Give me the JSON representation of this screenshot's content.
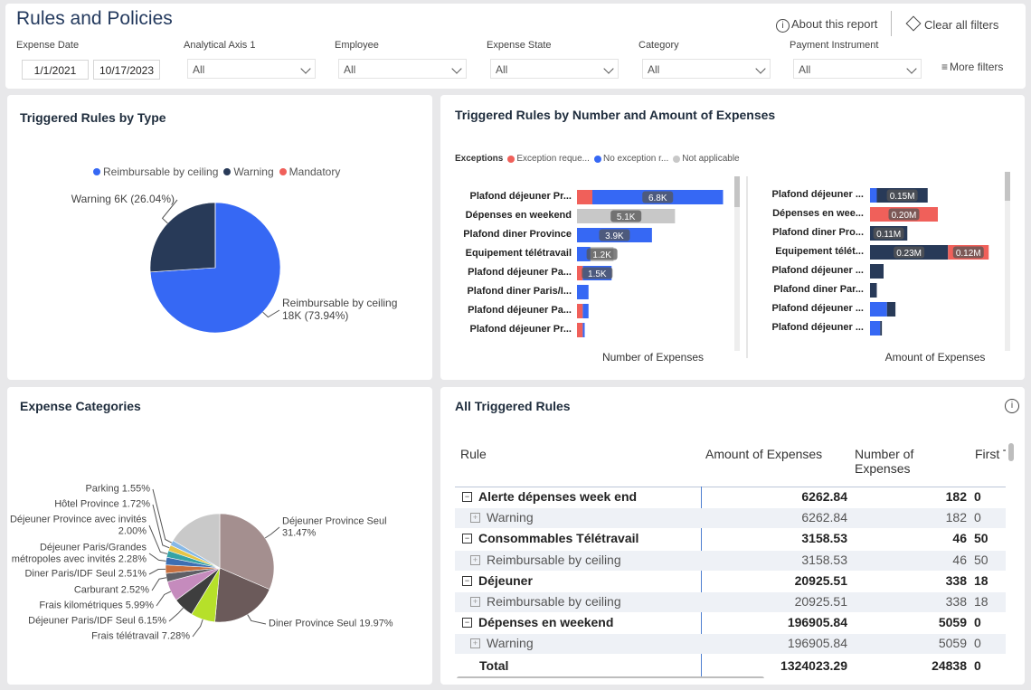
{
  "header": {
    "title": "Rules and Policies",
    "about": "About this report",
    "clear_filters": "Clear all filters",
    "more_filters": "More filters"
  },
  "filters": [
    {
      "label": "Expense Date",
      "values": [
        "1/1/2021",
        "10/17/2023"
      ]
    },
    {
      "label": "Analytical Axis 1",
      "values": [
        "All"
      ]
    },
    {
      "label": "Employee",
      "values": [
        "All"
      ]
    },
    {
      "label": "Expense State",
      "values": [
        "All"
      ]
    },
    {
      "label": "Category",
      "values": [
        "All"
      ]
    },
    {
      "label": "Payment Instrument",
      "values": [
        "All"
      ]
    }
  ],
  "chart_data": [
    {
      "type": "pie",
      "title": "Triggered Rules by Type",
      "categories": [
        "Reimbursable by ceiling",
        "Warning",
        "Mandatory"
      ],
      "values": [
        73.94,
        26.04,
        0.02
      ],
      "value_labels": [
        "Reimbursable by ceiling 18K (73.94%)",
        "Warning 6K (26.04%)",
        null
      ],
      "colors": [
        "#3668f4",
        "#283a58",
        "#f0605a"
      ],
      "legend": "top"
    },
    {
      "type": "bar",
      "orientation": "horizontal",
      "stacked": true,
      "title": "Triggered Rules by Number and Amount of Expenses",
      "legend_title": "Exceptions",
      "x_label": "Number of Expenses",
      "categories": [
        "Plafond déjeuner Pr...",
        "Dépenses en weekend",
        "Plafond diner Province",
        "Equipement télétravail",
        "Plafond déjeuner Pa...",
        "Plafond diner Paris/I...",
        "Plafond déjeuner Pa...",
        "Plafond déjeuner Pr..."
      ],
      "xlim": [
        0,
        8000
      ],
      "series": [
        {
          "name": "Exception reque...",
          "color": "#f0605a",
          "values": [
            800,
            0,
            0,
            0,
            300,
            0,
            300,
            300
          ]
        },
        {
          "name": "No exception r...",
          "color": "#3668f4",
          "values": [
            6800,
            0,
            3900,
            700,
            1500,
            600,
            300,
            100
          ],
          "value_labels": [
            "6.8K",
            null,
            "3.9K",
            null,
            "1.5K",
            null,
            null,
            null
          ]
        },
        {
          "name": "Not applicable",
          "color": "#c8c8c8",
          "values": [
            0,
            5100,
            0,
            1200,
            0,
            0,
            0,
            0
          ],
          "value_labels": [
            null,
            "5.1K",
            null,
            "1.2K",
            null,
            null,
            null,
            null
          ]
        }
      ]
    },
    {
      "type": "bar",
      "orientation": "horizontal",
      "stacked": true,
      "x_label": "Amount of Expenses",
      "categories": [
        "Plafond déjeuner ...",
        "Dépenses en wee...",
        "Plafond diner Pro...",
        "Equipement télét...",
        "Plafond déjeuner ...",
        "Plafond diner Par...",
        "Plafond déjeuner ...",
        "Plafond déjeuner ..."
      ],
      "xlim": [
        0,
        400000
      ],
      "series": [
        {
          "color": "#3668f4",
          "values": [
            20000,
            0,
            0,
            0,
            0,
            0,
            50000,
            30000
          ]
        },
        {
          "color": "#283a58",
          "values": [
            150000,
            0,
            110000,
            230000,
            40000,
            20000,
            25000,
            5000
          ],
          "value_labels": [
            "0.15M",
            null,
            "0.11M",
            "0.23M",
            null,
            null,
            null,
            null
          ]
        },
        {
          "color": "#f0605a",
          "values": [
            0,
            200000,
            0,
            120000,
            0,
            0,
            0,
            0
          ],
          "value_labels": [
            null,
            "0.20M",
            null,
            "0.12M",
            null,
            null,
            null,
            null
          ]
        }
      ]
    },
    {
      "type": "pie",
      "title": "Expense Categories",
      "categories": [
        "Déjeuner Province Seul",
        "Diner Province Seul",
        "Frais télétravail",
        "Déjeuner Paris/IDF Seul",
        "Frais kilométriques",
        "Carburant",
        "Diner Paris/IDF Seul",
        "Déjeuner Paris/Grandes métropoles avec invités",
        "Déjeuner Province avec invités",
        "Hôtel Province",
        "Parking",
        null
      ],
      "values": [
        31.47,
        19.97,
        7.28,
        6.15,
        5.99,
        2.52,
        2.51,
        2.28,
        2.0,
        1.72,
        1.55,
        16.56
      ],
      "value_labels": [
        "31.47%",
        "19.97%",
        "7.28%",
        "6.15%",
        "5.99%",
        "2.52%",
        "2.51%",
        "2.28%",
        "2.00%",
        "1.72%",
        "1.55%",
        null
      ],
      "colors": [
        "#a48f8f",
        "#6b5a5a",
        "#b6e02a",
        "#3e3e3e",
        "#c58bbd",
        "#5f5f66",
        "#c9703f",
        "#3e6fb2",
        "#35a3a6",
        "#e6c547",
        "#86b8e6",
        "#c9c9c9"
      ]
    }
  ],
  "table": {
    "title": "All Triggered Rules",
    "columns": [
      "Rule",
      "Amount of Expenses",
      "Number of Expenses",
      "First T"
    ],
    "groups": [
      {
        "cells": [
          "Alerte dépenses week end",
          "6262.84",
          "182",
          "0"
        ],
        "children": [
          {
            "cells": [
              "Warning",
              "6262.84",
              "182",
              "0"
            ]
          }
        ]
      },
      {
        "cells": [
          "Consommables Télétravail",
          "3158.53",
          "46",
          "50"
        ],
        "children": [
          {
            "cells": [
              "Reimbursable by ceiling",
              "3158.53",
              "46",
              "50"
            ]
          }
        ]
      },
      {
        "cells": [
          "Déjeuner",
          "20925.51",
          "338",
          "18"
        ],
        "children": [
          {
            "cells": [
              "Reimbursable by ceiling",
              "20925.51",
              "338",
              "18"
            ]
          }
        ]
      },
      {
        "cells": [
          "Dépenses en weekend",
          "196905.84",
          "5059",
          "0"
        ],
        "children": [
          {
            "cells": [
              "Warning",
              "196905.84",
              "5059",
              "0"
            ]
          }
        ]
      }
    ],
    "total": [
      "Total",
      "1324023.29",
      "24838",
      "0"
    ]
  }
}
